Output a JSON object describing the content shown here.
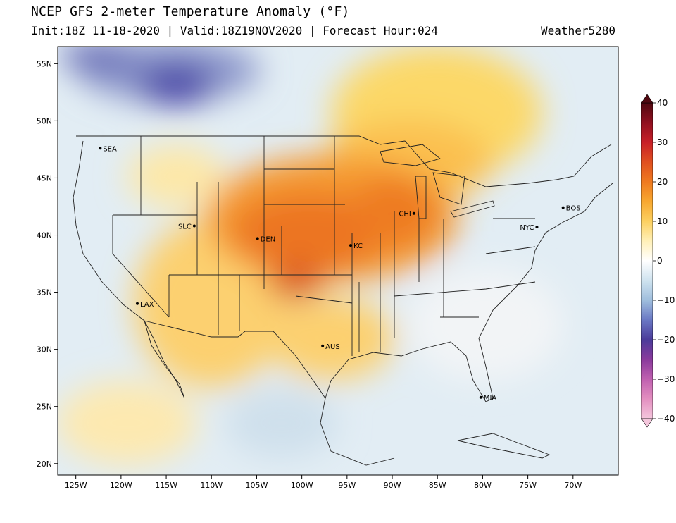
{
  "header": {
    "title": "NCEP GFS 2-meter Temperature Anomaly (°F)",
    "subtitle": "Init:18Z 11-18-2020 | Valid:18Z19NOV2020 | Forecast Hour:024",
    "brand": "Weather5280"
  },
  "map": {
    "lon_range": [
      -127,
      -65
    ],
    "lat_range": [
      19,
      56.5
    ],
    "lon_ticks": [
      {
        "value": -125,
        "label": "125W"
      },
      {
        "value": -120,
        "label": "120W"
      },
      {
        "value": -115,
        "label": "115W"
      },
      {
        "value": -110,
        "label": "110W"
      },
      {
        "value": -105,
        "label": "105W"
      },
      {
        "value": -100,
        "label": "100W"
      },
      {
        "value": -95,
        "label": "95W"
      },
      {
        "value": -90,
        "label": "90W"
      },
      {
        "value": -85,
        "label": "85W"
      },
      {
        "value": -80,
        "label": "80W"
      },
      {
        "value": -75,
        "label": "75W"
      },
      {
        "value": -70,
        "label": "70W"
      }
    ],
    "lat_ticks": [
      {
        "value": 55,
        "label": "55N"
      },
      {
        "value": 50,
        "label": "50N"
      },
      {
        "value": 45,
        "label": "45N"
      },
      {
        "value": 40,
        "label": "40N"
      },
      {
        "value": 35,
        "label": "35N"
      },
      {
        "value": 30,
        "label": "30N"
      },
      {
        "value": 25,
        "label": "25N"
      },
      {
        "value": 20,
        "label": "20N"
      }
    ],
    "cities": [
      {
        "label": "SEA",
        "lon": -122.3,
        "lat": 47.6
      },
      {
        "label": "SLC",
        "lon": -111.9,
        "lat": 40.8
      },
      {
        "label": "DEN",
        "lon": -104.9,
        "lat": 39.7
      },
      {
        "label": "KC",
        "lon": -94.6,
        "lat": 39.1
      },
      {
        "label": "CHI",
        "lon": -87.6,
        "lat": 41.9
      },
      {
        "label": "BOS",
        "lon": -71.1,
        "lat": 42.4
      },
      {
        "label": "NYC",
        "lon": -74.0,
        "lat": 40.7
      },
      {
        "label": "LAX",
        "lon": -118.2,
        "lat": 34.0
      },
      {
        "label": "AUS",
        "lon": -97.7,
        "lat": 30.3
      },
      {
        "label": "MIA",
        "lon": -80.2,
        "lat": 25.8
      }
    ]
  },
  "colorbar": {
    "min": -40,
    "max": 40,
    "labels": [
      {
        "value": 40,
        "label": "40"
      },
      {
        "value": 30,
        "label": "30"
      },
      {
        "value": 20,
        "label": "20"
      },
      {
        "value": 10,
        "label": "10"
      },
      {
        "value": 0,
        "label": "0"
      },
      {
        "value": -10,
        "label": "−10"
      },
      {
        "value": -20,
        "label": "−20"
      },
      {
        "value": -30,
        "label": "−30"
      },
      {
        "value": -40,
        "label": "−40"
      }
    ],
    "stops": [
      {
        "value": -40,
        "color": "#f4c6dc"
      },
      {
        "value": -35,
        "color": "#e38fc0"
      },
      {
        "value": -30,
        "color": "#c060b0"
      },
      {
        "value": -25,
        "color": "#8a3a9c"
      },
      {
        "value": -20,
        "color": "#4b3b9a"
      },
      {
        "value": -15,
        "color": "#6a78c4"
      },
      {
        "value": -10,
        "color": "#9fbedd"
      },
      {
        "value": -5,
        "color": "#cfe3ef"
      },
      {
        "value": 0,
        "color": "#ffffff"
      },
      {
        "value": 5,
        "color": "#fff0b8"
      },
      {
        "value": 10,
        "color": "#fcd060"
      },
      {
        "value": 15,
        "color": "#f8a830"
      },
      {
        "value": 20,
        "color": "#ef7a20"
      },
      {
        "value": 25,
        "color": "#e05020"
      },
      {
        "value": 30,
        "color": "#c82028"
      },
      {
        "value": 35,
        "color": "#901020"
      },
      {
        "value": 40,
        "color": "#500810"
      }
    ]
  }
}
